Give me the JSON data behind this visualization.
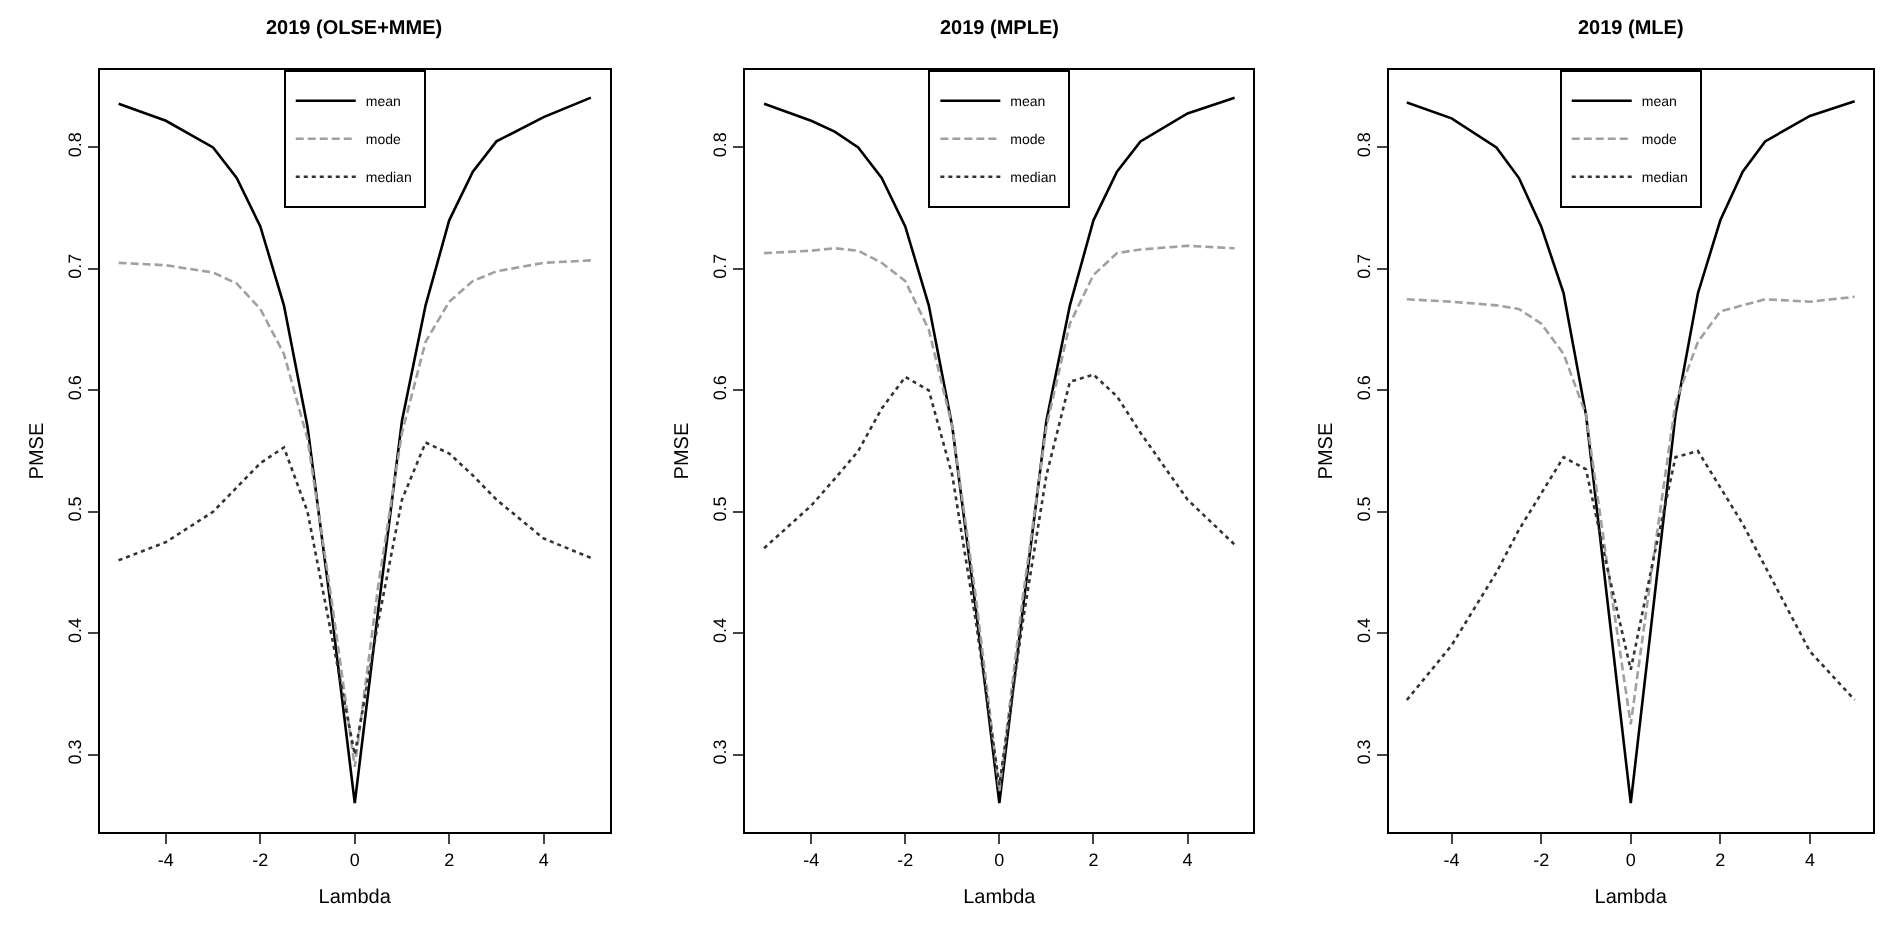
{
  "chart_data": [
    {
      "type": "line",
      "title": "2019 (OLSE+MME)",
      "xlabel": "Lambda",
      "ylabel": "PMSE",
      "xlim": [
        -5.4,
        5.4
      ],
      "ylim": [
        0.236,
        0.864
      ],
      "xticks": [
        -4,
        -2,
        0,
        2,
        4
      ],
      "yticks": [
        0.3,
        0.4,
        0.5,
        0.6,
        0.7,
        0.8
      ],
      "grid": false,
      "legend": "top",
      "marker": "none",
      "x": [
        -5,
        -4,
        -3,
        -2.5,
        -2,
        -1.5,
        -1,
        -0.5,
        0,
        0.5,
        1,
        1.5,
        2,
        2.5,
        3,
        4,
        5
      ],
      "series": [
        {
          "name": "mean",
          "color": "#000000",
          "line_style": "solid",
          "values": [
            0.836,
            0.822,
            0.8,
            0.775,
            0.735,
            0.67,
            0.57,
            0.42,
            0.26,
            0.42,
            0.575,
            0.67,
            0.74,
            0.78,
            0.805,
            0.825,
            0.841
          ]
        },
        {
          "name": "mode",
          "color": "#a0a0a0",
          "line_style": "dashed",
          "values": [
            0.705,
            0.703,
            0.697,
            0.688,
            0.667,
            0.63,
            0.56,
            0.43,
            0.29,
            0.44,
            0.565,
            0.64,
            0.673,
            0.69,
            0.698,
            0.705,
            0.707
          ]
        },
        {
          "name": "median",
          "color": "#333333",
          "line_style": "dotted",
          "values": [
            0.46,
            0.475,
            0.5,
            0.52,
            0.54,
            0.553,
            0.5,
            0.4,
            0.3,
            0.41,
            0.51,
            0.557,
            0.548,
            0.53,
            0.51,
            0.478,
            0.462
          ]
        }
      ]
    },
    {
      "type": "line",
      "title": "2019 (MPLE)",
      "xlabel": "Lambda",
      "ylabel": "PMSE",
      "xlim": [
        -5.4,
        5.4
      ],
      "ylim": [
        0.236,
        0.864
      ],
      "xticks": [
        -4,
        -2,
        0,
        2,
        4
      ],
      "yticks": [
        0.3,
        0.4,
        0.5,
        0.6,
        0.7,
        0.8
      ],
      "grid": false,
      "legend": "top",
      "marker": "none",
      "x": [
        -5,
        -4,
        -3.5,
        -3,
        -2.5,
        -2,
        -1.5,
        -1,
        -0.5,
        0,
        0.5,
        1,
        1.5,
        2,
        2.5,
        3,
        4,
        5
      ],
      "series": [
        {
          "name": "mean",
          "color": "#000000",
          "line_style": "solid",
          "values": [
            0.836,
            0.822,
            0.813,
            0.8,
            0.775,
            0.735,
            0.67,
            0.57,
            0.42,
            0.26,
            0.42,
            0.575,
            0.67,
            0.74,
            0.78,
            0.805,
            0.828,
            0.841
          ]
        },
        {
          "name": "mode",
          "color": "#a0a0a0",
          "line_style": "dashed",
          "values": [
            0.713,
            0.715,
            0.717,
            0.715,
            0.705,
            0.69,
            0.65,
            0.57,
            0.43,
            0.27,
            0.43,
            0.57,
            0.655,
            0.695,
            0.713,
            0.716,
            0.719,
            0.717
          ]
        },
        {
          "name": "median",
          "color": "#333333",
          "line_style": "dotted",
          "values": [
            0.47,
            0.505,
            0.527,
            0.55,
            0.585,
            0.611,
            0.6,
            0.53,
            0.41,
            0.275,
            0.41,
            0.53,
            0.607,
            0.613,
            0.595,
            0.565,
            0.51,
            0.473
          ]
        }
      ]
    },
    {
      "type": "line",
      "title": "2019 (MLE)",
      "xlabel": "Lambda",
      "ylabel": "PMSE",
      "xlim": [
        -5.4,
        5.4
      ],
      "ylim": [
        0.236,
        0.864
      ],
      "xticks": [
        -4,
        -2,
        0,
        2,
        4
      ],
      "yticks": [
        0.3,
        0.4,
        0.5,
        0.6,
        0.7,
        0.8
      ],
      "grid": false,
      "legend": "top",
      "marker": "none",
      "x": [
        -5,
        -4,
        -3,
        -2.5,
        -2,
        -1.5,
        -1,
        -0.5,
        0,
        0.5,
        1,
        1.5,
        2,
        2.5,
        3,
        4,
        5
      ],
      "series": [
        {
          "name": "mean",
          "color": "#000000",
          "line_style": "solid",
          "values": [
            0.837,
            0.824,
            0.8,
            0.775,
            0.735,
            0.68,
            0.58,
            0.42,
            0.26,
            0.42,
            0.58,
            0.68,
            0.74,
            0.78,
            0.805,
            0.826,
            0.838
          ]
        },
        {
          "name": "mode",
          "color": "#a0a0a0",
          "line_style": "dashed",
          "values": [
            0.675,
            0.673,
            0.67,
            0.667,
            0.655,
            0.63,
            0.58,
            0.45,
            0.325,
            0.46,
            0.59,
            0.64,
            0.665,
            0.67,
            0.675,
            0.673,
            0.677
          ]
        },
        {
          "name": "median",
          "color": "#333333",
          "line_style": "dotted",
          "values": [
            0.345,
            0.39,
            0.45,
            0.485,
            0.515,
            0.545,
            0.535,
            0.45,
            0.37,
            0.46,
            0.545,
            0.55,
            0.52,
            0.49,
            0.455,
            0.385,
            0.345
          ]
        }
      ]
    }
  ]
}
